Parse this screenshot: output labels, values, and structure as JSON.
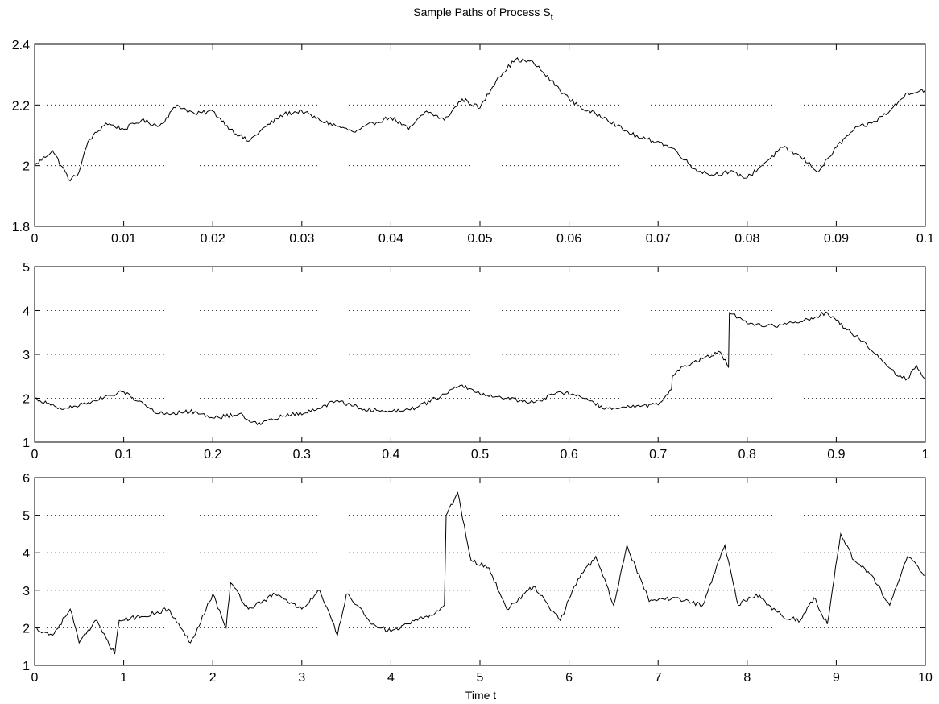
{
  "title": {
    "main": "Sample Paths of Process S",
    "subscript": "t"
  },
  "xlabel": "Time t",
  "chart_data": [
    {
      "type": "line",
      "xlim": [
        0,
        0.1
      ],
      "ylim": [
        1.8,
        2.4
      ],
      "x_ticks": [
        0,
        0.01,
        0.02,
        0.03,
        0.04,
        0.05,
        0.06,
        0.07,
        0.08,
        0.09,
        0.1
      ],
      "x_tick_labels": [
        "0",
        "0.01",
        "0.02",
        "0.03",
        "0.04",
        "0.05",
        "0.06",
        "0.07",
        "0.08",
        "0.09",
        "0.1"
      ],
      "y_ticks": [
        1.8,
        2,
        2.2,
        2.4
      ],
      "y_tick_labels": [
        "1.8",
        "2",
        "2.2",
        "2.4"
      ],
      "grid": "horizontal-dotted",
      "series": [
        {
          "x": [
            0,
            0.002,
            0.004,
            0.005,
            0.006,
            0.008,
            0.01,
            0.012,
            0.014,
            0.016,
            0.018,
            0.02,
            0.022,
            0.024,
            0.026,
            0.028,
            0.03,
            0.032,
            0.034,
            0.036,
            0.038,
            0.04,
            0.042,
            0.044,
            0.046,
            0.048,
            0.05,
            0.052,
            0.054,
            0.056,
            0.058,
            0.06,
            0.062,
            0.064,
            0.066,
            0.068,
            0.07,
            0.072,
            0.074,
            0.076,
            0.078,
            0.08,
            0.082,
            0.084,
            0.086,
            0.088,
            0.09,
            0.092,
            0.094,
            0.096,
            0.098,
            0.1
          ],
          "y": [
            2.0,
            2.05,
            1.95,
            1.98,
            2.08,
            2.14,
            2.12,
            2.15,
            2.13,
            2.2,
            2.17,
            2.18,
            2.12,
            2.08,
            2.13,
            2.17,
            2.18,
            2.15,
            2.13,
            2.11,
            2.14,
            2.16,
            2.12,
            2.18,
            2.15,
            2.22,
            2.19,
            2.29,
            2.35,
            2.34,
            2.28,
            2.22,
            2.18,
            2.16,
            2.12,
            2.09,
            2.08,
            2.05,
            1.99,
            1.97,
            1.98,
            1.96,
            2.01,
            2.06,
            2.03,
            1.98,
            2.06,
            2.12,
            2.14,
            2.18,
            2.24,
            2.25
          ]
        }
      ]
    },
    {
      "type": "line",
      "xlim": [
        0,
        1
      ],
      "ylim": [
        1,
        5
      ],
      "x_ticks": [
        0,
        0.1,
        0.2,
        0.3,
        0.4,
        0.5,
        0.6,
        0.7,
        0.8,
        0.9,
        1
      ],
      "x_tick_labels": [
        "0",
        "0.1",
        "0.2",
        "0.3",
        "0.4",
        "0.5",
        "0.6",
        "0.7",
        "0.8",
        "0.9",
        "1"
      ],
      "y_ticks": [
        1,
        2,
        3,
        4,
        5
      ],
      "y_tick_labels": [
        "1",
        "2",
        "3",
        "4",
        "5"
      ],
      "grid": "horizontal-dotted",
      "series": [
        {
          "x": [
            0,
            0.03,
            0.06,
            0.1,
            0.14,
            0.18,
            0.2,
            0.23,
            0.25,
            0.28,
            0.31,
            0.34,
            0.37,
            0.4,
            0.43,
            0.46,
            0.48,
            0.5,
            0.53,
            0.56,
            0.59,
            0.62,
            0.64,
            0.67,
            0.7,
            0.715,
            0.716,
            0.73,
            0.75,
            0.77,
            0.779,
            0.78,
            0.8,
            0.83,
            0.86,
            0.89,
            0.91,
            0.93,
            0.95,
            0.97,
            0.98,
            0.99,
            1.0
          ],
          "y": [
            2.0,
            1.75,
            1.9,
            2.15,
            1.65,
            1.7,
            1.55,
            1.65,
            1.4,
            1.6,
            1.7,
            1.95,
            1.75,
            1.7,
            1.8,
            2.1,
            2.3,
            2.1,
            2.0,
            1.9,
            2.15,
            2.0,
            1.75,
            1.8,
            1.85,
            2.2,
            2.5,
            2.75,
            2.9,
            3.05,
            2.7,
            3.95,
            3.7,
            3.65,
            3.75,
            3.95,
            3.6,
            3.3,
            2.9,
            2.5,
            2.45,
            2.75,
            2.45
          ]
        }
      ]
    },
    {
      "type": "line",
      "xlim": [
        0,
        10
      ],
      "ylim": [
        1,
        6
      ],
      "x_ticks": [
        0,
        1,
        2,
        3,
        4,
        5,
        6,
        7,
        8,
        9,
        10
      ],
      "x_tick_labels": [
        "0",
        "1",
        "2",
        "3",
        "4",
        "5",
        "6",
        "7",
        "8",
        "9",
        "10"
      ],
      "y_ticks": [
        1,
        2,
        3,
        4,
        5,
        6
      ],
      "y_tick_labels": [
        "1",
        "2",
        "3",
        "4",
        "5",
        "6"
      ],
      "grid": "horizontal-dotted",
      "series": [
        {
          "x": [
            0,
            0.2,
            0.4,
            0.5,
            0.7,
            0.9,
            0.95,
            1.2,
            1.5,
            1.75,
            2.0,
            2.15,
            2.2,
            2.4,
            2.7,
            3.0,
            3.2,
            3.4,
            3.5,
            3.8,
            4.0,
            4.3,
            4.5,
            4.6,
            4.62,
            4.75,
            4.9,
            5.1,
            5.3,
            5.6,
            5.9,
            6.1,
            6.3,
            6.5,
            6.65,
            6.9,
            7.2,
            7.5,
            7.62,
            7.75,
            7.9,
            8.1,
            8.4,
            8.6,
            8.75,
            8.9,
            9.05,
            9.2,
            9.4,
            9.6,
            9.8,
            10.0
          ],
          "y": [
            2.0,
            1.8,
            2.5,
            1.6,
            2.2,
            1.3,
            2.2,
            2.3,
            2.5,
            1.6,
            2.9,
            2.0,
            3.2,
            2.5,
            2.9,
            2.5,
            3.0,
            1.8,
            2.9,
            2.1,
            1.9,
            2.2,
            2.4,
            2.6,
            5.0,
            5.6,
            3.8,
            3.6,
            2.5,
            3.1,
            2.2,
            3.3,
            3.9,
            2.6,
            4.2,
            2.7,
            2.8,
            2.6,
            3.4,
            4.2,
            2.6,
            2.9,
            2.3,
            2.2,
            2.8,
            2.1,
            4.5,
            3.8,
            3.4,
            2.6,
            3.9,
            3.4
          ]
        }
      ]
    }
  ]
}
